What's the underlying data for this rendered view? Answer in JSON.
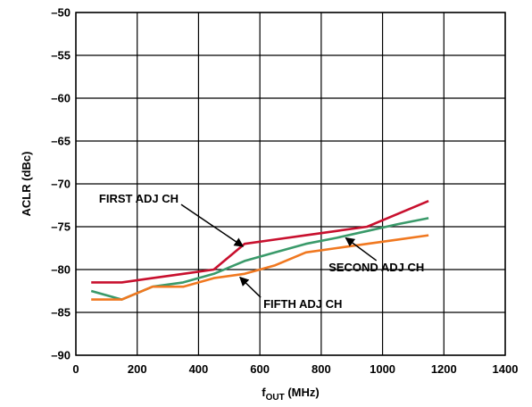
{
  "chart_data": {
    "type": "line",
    "xlabel": "f",
    "xlabel_sub": "OUT",
    "xlabel_unit": " (MHz)",
    "ylabel": "ACLR (dBc)",
    "xlim": [
      0,
      1400
    ],
    "ylim": [
      -90,
      -50
    ],
    "xticks": [
      0,
      200,
      400,
      600,
      800,
      1000,
      1200,
      1400
    ],
    "yticks": [
      -50,
      -55,
      -60,
      -65,
      -70,
      -75,
      -80,
      -85,
      -90
    ],
    "grid": true,
    "series": [
      {
        "name": "FIRST ADJ CH",
        "color": "#c8102e",
        "x": [
          50,
          150,
          250,
          350,
          450,
          550,
          650,
          750,
          850,
          950,
          1050,
          1150
        ],
        "y": [
          -81.5,
          -81.5,
          -81.0,
          -80.5,
          -80.0,
          -77.0,
          -76.5,
          -76.0,
          -75.5,
          -75.0,
          -73.5,
          -72.0
        ]
      },
      {
        "name": "SECOND ADJ CH",
        "color": "#3a9a6a",
        "x": [
          50,
          150,
          250,
          350,
          450,
          550,
          650,
          750,
          850,
          950,
          1050,
          1150
        ],
        "y": [
          -82.5,
          -83.5,
          -82.0,
          -81.5,
          -80.5,
          -79.0,
          -78.0,
          -77.0,
          -76.3,
          -75.5,
          -74.7,
          -74.0
        ]
      },
      {
        "name": "FIFTH ADJ CH",
        "color": "#f07820",
        "x": [
          50,
          150,
          250,
          350,
          450,
          550,
          650,
          750,
          850,
          950,
          1050,
          1150
        ],
        "y": [
          -83.5,
          -83.5,
          -82.0,
          -82.0,
          -81.0,
          -80.5,
          -79.5,
          -78.0,
          -77.5,
          -77.0,
          -76.5,
          -76.0
        ]
      }
    ],
    "annotations": [
      {
        "text": "FIRST ADJ CH",
        "series": 0,
        "tx": 205,
        "ty": -72.2,
        "px": 545,
        "py": -77.3,
        "anchor": "middle"
      },
      {
        "text": "SECOND ADJ CH",
        "series": 1,
        "tx": 980,
        "ty": -80.2,
        "px": 880,
        "py": -76.3,
        "anchor": "middle"
      },
      {
        "text": "FIFTH ADJ CH",
        "series": 2,
        "tx": 740,
        "ty": -84.5,
        "px": 535,
        "py": -80.9,
        "anchor": "middle"
      }
    ]
  }
}
